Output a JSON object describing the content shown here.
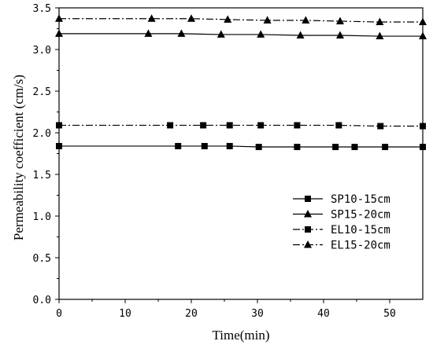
{
  "chart_data": {
    "type": "line",
    "xlabel": "Time(min)",
    "ylabel": "Permeability coefficient (cm/s)",
    "xlim": [
      0,
      55
    ],
    "ylim": [
      0,
      3.5
    ],
    "xticks": [
      "0",
      "10",
      "20",
      "30",
      "40",
      "50"
    ],
    "yticks": [
      "0.0",
      "0.5",
      "1.0",
      "1.5",
      "2.0",
      "2.5",
      "3.0",
      "3.5"
    ],
    "legend_position": "right-middle",
    "grid": false,
    "series": [
      {
        "name": "SP10-15cm",
        "marker": "square",
        "line": "solid",
        "x": [
          0,
          18,
          22,
          25.8,
          30.2,
          36,
          41.8,
          44.7,
          49.3,
          55
        ],
        "y": [
          1.84,
          1.84,
          1.84,
          1.84,
          1.83,
          1.83,
          1.83,
          1.83,
          1.83,
          1.83
        ]
      },
      {
        "name": "SP15-20cm",
        "marker": "triangle",
        "line": "solid",
        "x": [
          0,
          13.5,
          18.5,
          24.5,
          30.5,
          36.5,
          42.5,
          48.5,
          55
        ],
        "y": [
          3.19,
          3.19,
          3.19,
          3.18,
          3.18,
          3.17,
          3.17,
          3.16,
          3.16
        ]
      },
      {
        "name": "EL10-15cm",
        "marker": "square",
        "line": "dash-dot",
        "x": [
          0,
          16.8,
          21.8,
          25.8,
          30.5,
          36,
          42.3,
          48.6,
          55
        ],
        "y": [
          2.09,
          2.09,
          2.09,
          2.09,
          2.09,
          2.09,
          2.09,
          2.08,
          2.08
        ]
      },
      {
        "name": "EL15-20cm",
        "marker": "triangle",
        "line": "dash-dot",
        "x": [
          0,
          14,
          20,
          25.5,
          31.5,
          37.3,
          42.5,
          48.5,
          55
        ],
        "y": [
          3.37,
          3.37,
          3.37,
          3.36,
          3.35,
          3.35,
          3.34,
          3.33,
          3.33
        ]
      }
    ]
  }
}
